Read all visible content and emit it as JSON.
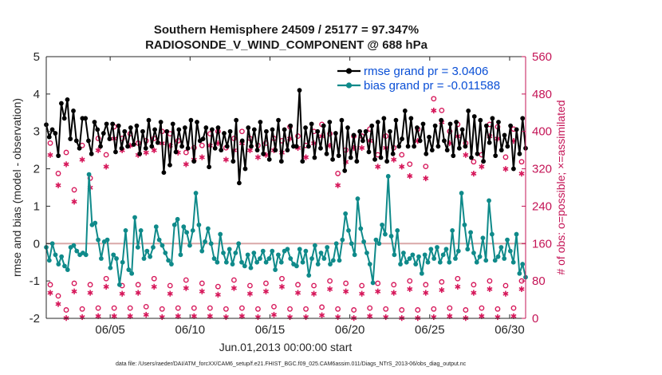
{
  "chart_data": {
    "type": "line",
    "title_line1": "Southern Hemisphere 24509 / 25177 = 97.347%",
    "title_line2": "RADIOSONDE_V_WIND_COMPONENT @ 688 hPa",
    "xlabel": "Jun.01,2013 00:00:00 start",
    "ylabel_left": "rmse and bias (model - observation)",
    "ylabel_right": "# of obs: o=possible; ×=assimilated",
    "footnote": "data file: /Users/raeder/DAI/ATM_forcXX/CAM6_setup/f.e21.FHIST_BGC.f09_025.CAM6assim.011/Diags_NTrS_2013-06/obs_diag_output.nc",
    "x_range": [
      1.0,
      31.0
    ],
    "x_ticks": [
      5,
      10,
      15,
      20,
      25,
      30
    ],
    "x_tick_labels": [
      "06/05",
      "06/10",
      "06/15",
      "06/20",
      "06/25",
      "06/30"
    ],
    "y_left_range": [
      -2,
      5
    ],
    "y_left_ticks": [
      -2,
      -1,
      0,
      1,
      2,
      3,
      4,
      5
    ],
    "y_left_tick_labels": [
      "-2",
      "-1",
      "0",
      "1",
      "2",
      "3",
      "4",
      "5"
    ],
    "y_right_range": [
      0,
      560
    ],
    "y_right_ticks": [
      0,
      80,
      160,
      240,
      320,
      400,
      480,
      560
    ],
    "y_right_tick_labels": [
      "0",
      "80",
      "160",
      "240",
      "320",
      "400",
      "480",
      "560"
    ],
    "zero_line": 0,
    "colors": {
      "rmse": "#000000",
      "bias": "#0f8a8a",
      "obs": "#d6175a",
      "axis_right": "#c41456",
      "zero_line": "#d9a8a8",
      "legend_text": "#0a4fd6"
    },
    "series": [
      {
        "name": "rmse",
        "legend": "rmse grand pr = 3.0406",
        "values": [
          3.18,
          2.85,
          3.05,
          2.95,
          2.35,
          3.75,
          3.35,
          3.85,
          2.8,
          3.55,
          2.75,
          2.55,
          3.35,
          3.35,
          2.75,
          2.4,
          3.25,
          3.05,
          2.6,
          2.95,
          3.2,
          2.8,
          3.2,
          2.45,
          3.15,
          2.55,
          3.0,
          2.6,
          3.1,
          2.65,
          3.15,
          2.4,
          3.0,
          2.55,
          3.3,
          2.6,
          3.05,
          2.7,
          3.25,
          1.9,
          3.0,
          2.1,
          3.2,
          2.45,
          3.05,
          2.6,
          3.1,
          2.55,
          3.3,
          2.2,
          3.25,
          2.75,
          2.8,
          3.1,
          2.05,
          3.05,
          2.55,
          3.1,
          2.5,
          2.95,
          2.6,
          3.0,
          2.2,
          3.3,
          1.62,
          2.75,
          2.0,
          3.1,
          2.6,
          3.05,
          2.5,
          3.25,
          2.4,
          3.0,
          2.25,
          3.05,
          2.5,
          3.3,
          2.2,
          3.05,
          2.5,
          3.15,
          2.6,
          2.6,
          4.1,
          2.2,
          3.1,
          2.6,
          3.2,
          2.3,
          3.0,
          2.55,
          3.15,
          2.4,
          3.25,
          2.25,
          2.95,
          2.35,
          3.3,
          1.95,
          3.1,
          2.3,
          2.9,
          2.2,
          3.0,
          2.75,
          3.0,
          2.45,
          3.15,
          2.25,
          3.25,
          2.3,
          3.35,
          2.2,
          3.0,
          2.4,
          3.3,
          2.6,
          2.8,
          3.55,
          2.6,
          3.35,
          2.6,
          3.1,
          2.75,
          3.2,
          2.4,
          2.85,
          2.5,
          3.15,
          2.6,
          3.3,
          2.75,
          2.5,
          3.2,
          2.35,
          3.25,
          2.55,
          3.05,
          2.6,
          3.55,
          2.3,
          3.4,
          2.4,
          3.3,
          2.2,
          3.15,
          2.7,
          3.35,
          2.35,
          3.25,
          2.5,
          2.9,
          2.6,
          3.15,
          2.0,
          3.05,
          2.4,
          3.35,
          2.55
        ]
      },
      {
        "name": "bias",
        "legend": "bias grand pr = -0.011588",
        "values": [
          -0.1,
          -0.45,
          0.0,
          -0.3,
          -0.55,
          -0.35,
          -0.6,
          -0.7,
          -0.1,
          -0.05,
          -0.2,
          -0.3,
          -0.25,
          -0.3,
          1.85,
          0.5,
          0.55,
          0.1,
          -0.4,
          0.05,
          0.1,
          -0.65,
          -0.3,
          -0.4,
          -1.1,
          -0.5,
          0.35,
          -0.7,
          -0.8,
          0.7,
          -0.1,
          0.35,
          -0.4,
          -0.2,
          -0.35,
          -0.1,
          0.45,
          0.1,
          -0.05,
          -0.25,
          -0.45,
          -0.55,
          0.5,
          0.65,
          -0.3,
          0.45,
          0.3,
          -0.05,
          0.35,
          1.35,
          0.5,
          -0.2,
          0.05,
          0.4,
          0.0,
          -0.4,
          -0.5,
          0.25,
          -0.25,
          -0.5,
          -0.15,
          -0.55,
          -0.25,
          0.0,
          -0.5,
          -0.6,
          -0.3,
          -0.65,
          -0.25,
          -0.5,
          -0.4,
          -0.2,
          -0.5,
          -0.4,
          -0.2,
          -0.7,
          -0.3,
          -0.5,
          -0.2,
          -0.15,
          -0.4,
          -0.55,
          -0.6,
          -0.15,
          -0.5,
          -0.2,
          -0.85,
          -0.4,
          -0.05,
          -0.55,
          -0.25,
          -0.4,
          -0.1,
          -0.55,
          -0.45,
          0.0,
          -0.45,
          0.1,
          0.8,
          0.35,
          0.0,
          -0.3,
          1.2,
          0.4,
          0.05,
          -0.25,
          -0.55,
          -1.05,
          0.1,
          0.0,
          0.5,
          0.25,
          1.8,
          0.2,
          -0.3,
          0.35,
          -0.55,
          -0.25,
          -0.5,
          -0.4,
          -0.3,
          -0.55,
          -0.35,
          -0.8,
          -0.3,
          -0.5,
          -0.15,
          -0.4,
          -0.1,
          -0.5,
          -0.3,
          -0.15,
          -0.5,
          0.35,
          -0.4,
          -0.2,
          1.35,
          0.5,
          -0.15,
          0.3,
          -0.25,
          -0.5,
          -0.35,
          0.15,
          -0.45,
          1.15,
          0.25,
          -0.45,
          -0.35,
          -0.1,
          -0.4,
          0.1,
          -0.2,
          -0.5,
          0.25,
          -0.8,
          -0.55,
          -0.9
        ]
      },
      {
        "name": "obs_possible",
        "legend": "o = possible",
        "times": [
          1.25,
          1.75,
          2.25,
          2.75,
          3.25,
          3.75,
          4.25,
          4.75,
          5.25,
          5.75,
          6.25,
          6.75,
          7.25,
          7.75,
          8.25,
          8.75,
          9.25,
          9.75,
          10.25,
          10.75,
          11.25,
          11.75,
          12.25,
          12.75,
          13.25,
          13.75,
          14.25,
          14.75,
          15.25,
          15.75,
          16.25,
          16.75,
          17.25,
          17.75,
          18.25,
          18.75,
          19.25,
          19.75,
          20.25,
          20.75,
          21.25,
          21.75,
          22.25,
          22.75,
          23.25,
          23.75,
          24.25,
          24.75,
          25.25,
          25.75,
          26.25,
          26.75,
          27.25,
          27.75,
          28.25,
          28.75,
          29.25,
          29.75,
          30.25,
          30.75
        ],
        "values": [
          375,
          310,
          355,
          275,
          370,
          300,
          385,
          350,
          410,
          385,
          395,
          375,
          380,
          385,
          400,
          395,
          380,
          355,
          365,
          370,
          395,
          400,
          365,
          385,
          400,
          385,
          370,
          375,
          385,
          380,
          410,
          390,
          370,
          400,
          415,
          395,
          310,
          360,
          390,
          390,
          405,
          350,
          390,
          365,
          350,
          330,
          405,
          325,
          470,
          445,
          400,
          415,
          375,
          335,
          350,
          415,
          410,
          345,
          405,
          335
        ]
      },
      {
        "name": "obs_assimilated",
        "legend": "× = assimilated",
        "times": [
          1.25,
          1.75,
          2.25,
          2.75,
          3.25,
          3.75,
          4.25,
          4.75,
          5.25,
          5.75,
          6.25,
          6.75,
          7.25,
          7.75,
          8.25,
          8.75,
          9.25,
          9.75,
          10.25,
          10.75,
          11.25,
          11.75,
          12.25,
          12.75,
          13.25,
          13.75,
          14.25,
          14.75,
          15.25,
          15.75,
          16.25,
          16.75,
          17.25,
          17.75,
          18.25,
          18.75,
          19.25,
          19.75,
          20.25,
          20.75,
          21.25,
          21.75,
          22.25,
          22.75,
          23.25,
          23.75,
          24.25,
          24.75,
          25.25,
          25.75,
          26.25,
          26.75,
          27.25,
          27.75,
          28.25,
          28.75,
          29.25,
          29.75,
          30.25,
          30.75
        ],
        "values": [
          365,
          300,
          345,
          265,
          355,
          295,
          375,
          340,
          400,
          375,
          385,
          365,
          370,
          375,
          390,
          385,
          370,
          345,
          355,
          360,
          385,
          390,
          355,
          375,
          390,
          375,
          360,
          365,
          375,
          370,
          400,
          380,
          360,
          390,
          405,
          385,
          300,
          350,
          380,
          380,
          395,
          340,
          380,
          355,
          340,
          320,
          395,
          315,
          460,
          435,
          390,
          405,
          365,
          325,
          340,
          405,
          400,
          335,
          395,
          325
        ]
      },
      {
        "name": "obs_possible_low",
        "legend": "",
        "times": [
          1.25,
          1.75,
          2.25,
          2.75,
          3.25,
          3.75,
          4.25,
          4.75,
          5.25,
          5.75,
          6.25,
          6.75,
          7.25,
          7.75,
          8.25,
          8.75,
          9.25,
          9.75,
          10.25,
          10.75,
          11.25,
          11.75,
          12.25,
          12.75,
          13.25,
          13.75,
          14.25,
          14.75,
          15.25,
          15.75,
          16.25,
          16.75,
          17.25,
          17.75,
          18.25,
          18.75,
          19.25,
          19.75,
          20.25,
          20.75,
          21.25,
          21.75,
          22.25,
          22.75,
          23.25,
          23.75,
          24.25,
          24.75,
          25.25,
          25.75,
          26.25,
          26.75,
          27.25,
          27.75,
          28.25,
          28.75,
          29.25,
          29.75,
          30.25,
          30.75
        ],
        "values": [
          72,
          48,
          18,
          75,
          20,
          72,
          22,
          85,
          22,
          70,
          22,
          72,
          25,
          85,
          20,
          70,
          22,
          82,
          22,
          75,
          22,
          68,
          20,
          82,
          22,
          70,
          20,
          75,
          25,
          85,
          20,
          72,
          20,
          70,
          24,
          80,
          20,
          75,
          18,
          70,
          22,
          75,
          20,
          72,
          18,
          80,
          18,
          72,
          20,
          78,
          22,
          85,
          18,
          72,
          22,
          80,
          20,
          70,
          22,
          80
        ]
      },
      {
        "name": "obs_assimilated_low",
        "legend": "",
        "times": [
          1.25,
          1.75,
          2.25,
          2.75,
          3.25,
          3.75,
          4.25,
          4.75,
          5.25,
          5.75,
          6.25,
          6.75,
          7.25,
          7.75,
          8.25,
          8.75,
          9.25,
          9.75,
          10.25,
          10.75,
          11.25,
          11.75,
          12.25,
          12.75,
          13.25,
          13.75,
          14.25,
          14.75,
          15.25,
          15.75,
          16.25,
          16.75,
          17.25,
          17.75,
          18.25,
          18.75,
          19.25,
          19.75,
          20.25,
          20.75,
          21.25,
          21.75,
          22.25,
          22.75,
          23.25,
          23.75,
          24.25,
          24.75,
          25.25,
          25.75,
          26.25,
          26.75,
          27.25,
          27.75,
          28.25,
          28.75,
          29.25,
          29.75,
          30.25,
          30.75
        ],
        "values": [
          70,
          46,
          16,
          73,
          18,
          70,
          20,
          83,
          20,
          68,
          20,
          70,
          23,
          83,
          18,
          68,
          20,
          80,
          20,
          73,
          20,
          66,
          18,
          80,
          20,
          68,
          18,
          73,
          23,
          83,
          18,
          70,
          18,
          68,
          22,
          78,
          18,
          73,
          16,
          68,
          20,
          73,
          18,
          70,
          16,
          78,
          16,
          70,
          18,
          76,
          20,
          83,
          16,
          70,
          20,
          78,
          18,
          68,
          20,
          78
        ]
      }
    ]
  }
}
